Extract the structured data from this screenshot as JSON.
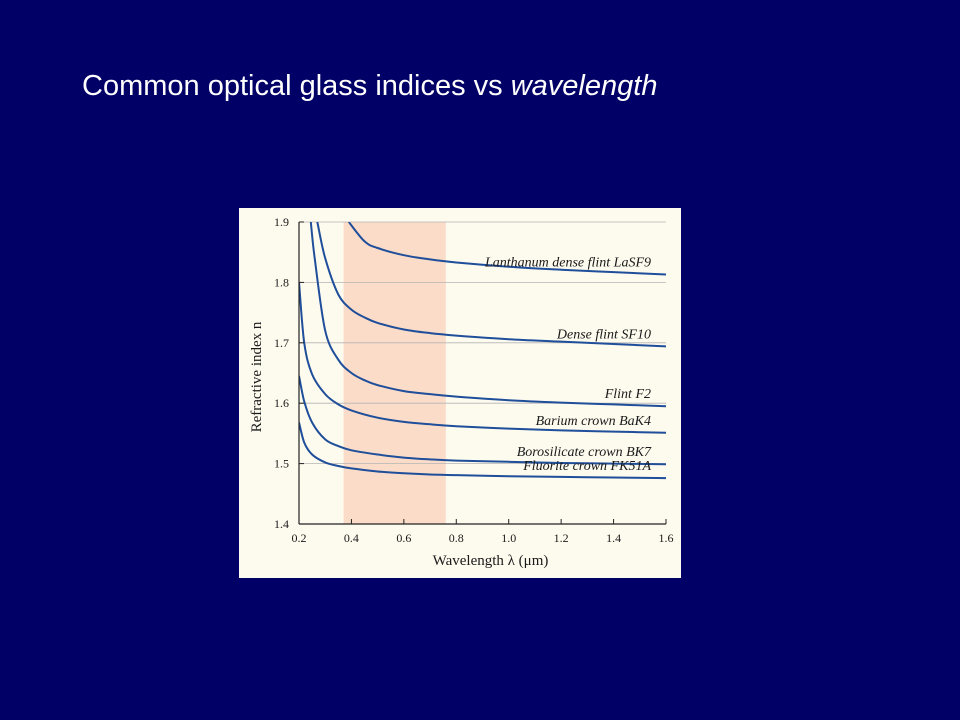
{
  "slide": {
    "title_prefix": "Common optical glass indices vs ",
    "title_emph": "wavelength",
    "background": "#010066"
  },
  "chart_data": {
    "type": "line",
    "xlabel": "Wavelength λ (μm)",
    "ylabel": "Refractive index n",
    "xlim": [
      0.2,
      1.6
    ],
    "ylim": [
      1.4,
      1.9
    ],
    "xticks": [
      "0.2",
      "0.4",
      "0.6",
      "0.8",
      "1.0",
      "1.2",
      "1.4",
      "1.6"
    ],
    "yticks": [
      "1.4",
      "1.5",
      "1.6",
      "1.7",
      "1.8",
      "1.9"
    ],
    "grid": "horizontal",
    "visible_band": {
      "x_range": [
        0.37,
        0.76
      ],
      "color": "#fbdcc8"
    },
    "line_color": "#1f4e9a",
    "series": [
      {
        "name": "Lanthanum dense flint LaSF9",
        "x": [
          0.39,
          0.45,
          0.5,
          0.6,
          0.7,
          0.8,
          1.0,
          1.2,
          1.4,
          1.6
        ],
        "values": [
          1.9,
          1.868,
          1.857,
          1.845,
          1.838,
          1.833,
          1.826,
          1.821,
          1.817,
          1.813
        ]
      },
      {
        "name": "Dense flint SF10",
        "x": [
          0.27,
          0.3,
          0.35,
          0.4,
          0.45,
          0.5,
          0.6,
          0.7,
          0.8,
          1.0,
          1.2,
          1.4,
          1.6
        ],
        "values": [
          1.9,
          1.84,
          1.78,
          1.755,
          1.742,
          1.733,
          1.722,
          1.716,
          1.712,
          1.706,
          1.702,
          1.698,
          1.694
        ]
      },
      {
        "name": "Flint F2",
        "x": [
          0.245,
          0.26,
          0.3,
          0.35,
          0.4,
          0.45,
          0.5,
          0.6,
          0.7,
          0.8,
          1.0,
          1.2,
          1.4,
          1.6
        ],
        "values": [
          1.9,
          1.84,
          1.72,
          1.672,
          1.65,
          1.638,
          1.63,
          1.62,
          1.615,
          1.611,
          1.605,
          1.601,
          1.598,
          1.595
        ]
      },
      {
        "name": "Barium crown BaK4",
        "x": [
          0.2,
          0.22,
          0.25,
          0.3,
          0.35,
          0.4,
          0.5,
          0.6,
          0.7,
          0.8,
          1.0,
          1.2,
          1.4,
          1.6
        ],
        "values": [
          1.8,
          1.7,
          1.648,
          1.615,
          1.598,
          1.588,
          1.576,
          1.569,
          1.565,
          1.562,
          1.558,
          1.555,
          1.553,
          1.551
        ]
      },
      {
        "name": "Borosilicate crown BK7",
        "x": [
          0.2,
          0.22,
          0.25,
          0.3,
          0.35,
          0.4,
          0.5,
          0.6,
          0.7,
          0.8,
          1.0,
          1.2,
          1.4,
          1.6
        ],
        "values": [
          1.645,
          1.603,
          1.568,
          1.54,
          1.529,
          1.522,
          1.515,
          1.51,
          1.507,
          1.505,
          1.503,
          1.501,
          1.5,
          1.499
        ]
      },
      {
        "name": "Fluorite crown FK51A",
        "x": [
          0.2,
          0.22,
          0.25,
          0.3,
          0.35,
          0.4,
          0.5,
          0.6,
          0.7,
          0.8,
          1.0,
          1.2,
          1.4,
          1.6
        ],
        "values": [
          1.568,
          1.535,
          1.515,
          1.502,
          1.496,
          1.492,
          1.487,
          1.484,
          1.482,
          1.481,
          1.479,
          1.478,
          1.477,
          1.476
        ]
      }
    ]
  }
}
